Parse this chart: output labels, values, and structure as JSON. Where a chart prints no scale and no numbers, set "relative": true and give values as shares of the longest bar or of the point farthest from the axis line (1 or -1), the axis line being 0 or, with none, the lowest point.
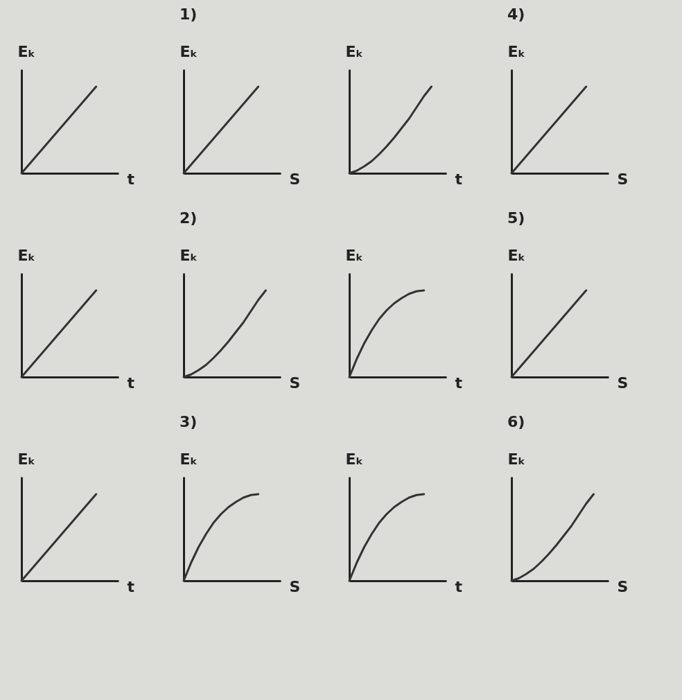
{
  "chart_data": [
    {
      "type": "line",
      "relative": true,
      "tick_labels": false,
      "ylabel": "Eₖ",
      "xlabel": "t",
      "categories": [
        null,
        null,
        null,
        null,
        null,
        null,
        null,
        null,
        null,
        null,
        null,
        null,
        null,
        null
      ],
      "series": [
        {
          "color": "#333333",
          "values": [
            0,
            0.1,
            0.2,
            0.3,
            0.4,
            0.5,
            0.6,
            0.7,
            0.8,
            0.9,
            1,
            null,
            null,
            null
          ]
        }
      ]
    },
    {
      "type": "line",
      "relative": true,
      "tick_labels": false,
      "title": "1)",
      "ylabel": "Eₖ",
      "xlabel": "S",
      "categories": [
        null,
        null,
        null,
        null,
        null,
        null,
        null,
        null,
        null,
        null,
        null,
        null,
        null,
        null
      ],
      "series": [
        {
          "color": "#333333",
          "values": [
            0,
            0.1,
            0.2,
            0.3,
            0.4,
            0.5,
            0.6,
            0.7,
            0.8,
            0.9,
            1,
            null,
            null,
            null
          ]
        }
      ]
    },
    {
      "type": "line",
      "relative": true,
      "tick_labels": false,
      "ylabel": "Eₖ",
      "xlabel": "t",
      "categories": [
        null,
        null,
        null,
        null,
        null,
        null,
        null,
        null,
        null,
        null,
        null,
        null,
        null,
        null
      ],
      "series": [
        {
          "color": "#333333",
          "values": [
            0,
            0.03,
            0.08,
            0.14,
            0.22,
            0.31,
            0.41,
            0.52,
            0.63,
            0.76,
            0.89,
            1,
            null,
            null
          ]
        }
      ]
    },
    {
      "type": "line",
      "relative": true,
      "tick_labels": false,
      "title": "4)",
      "ylabel": "Eₖ",
      "xlabel": "S",
      "categories": [
        null,
        null,
        null,
        null,
        null,
        null,
        null,
        null,
        null,
        null,
        null,
        null,
        null,
        null
      ],
      "series": [
        {
          "color": "#333333",
          "values": [
            0,
            0.1,
            0.2,
            0.3,
            0.4,
            0.5,
            0.6,
            0.7,
            0.8,
            0.9,
            1,
            null,
            null,
            null
          ]
        }
      ]
    },
    {
      "type": "line",
      "relative": true,
      "tick_labels": false,
      "ylabel": "Eₖ",
      "xlabel": "t",
      "categories": [
        null,
        null,
        null,
        null,
        null,
        null,
        null,
        null,
        null,
        null,
        null,
        null,
        null,
        null
      ],
      "series": [
        {
          "color": "#333333",
          "values": [
            0,
            0.1,
            0.2,
            0.3,
            0.4,
            0.5,
            0.6,
            0.7,
            0.8,
            0.9,
            1,
            null,
            null,
            null
          ]
        }
      ]
    },
    {
      "type": "line",
      "relative": true,
      "tick_labels": false,
      "title": "2)",
      "ylabel": "Eₖ",
      "xlabel": "S",
      "categories": [
        null,
        null,
        null,
        null,
        null,
        null,
        null,
        null,
        null,
        null,
        null,
        null,
        null,
        null
      ],
      "series": [
        {
          "color": "#333333",
          "values": [
            0,
            0.03,
            0.08,
            0.14,
            0.22,
            0.31,
            0.41,
            0.52,
            0.63,
            0.76,
            0.89,
            1,
            null,
            null
          ]
        }
      ]
    },
    {
      "type": "line",
      "relative": true,
      "tick_labels": false,
      "ylabel": "Eₖ",
      "xlabel": "t",
      "categories": [
        null,
        null,
        null,
        null,
        null,
        null,
        null,
        null,
        null,
        null,
        null,
        null,
        null,
        null
      ],
      "series": [
        {
          "color": "#333333",
          "values": [
            0,
            0.21,
            0.39,
            0.54,
            0.67,
            0.77,
            0.85,
            0.91,
            0.96,
            0.99,
            1,
            null,
            null,
            null
          ]
        }
      ]
    },
    {
      "type": "line",
      "relative": true,
      "tick_labels": false,
      "title": "5)",
      "ylabel": "Eₖ",
      "xlabel": "S",
      "categories": [
        null,
        null,
        null,
        null,
        null,
        null,
        null,
        null,
        null,
        null,
        null,
        null,
        null,
        null
      ],
      "series": [
        {
          "color": "#333333",
          "values": [
            0,
            0.1,
            0.2,
            0.3,
            0.4,
            0.5,
            0.6,
            0.7,
            0.8,
            0.9,
            1,
            null,
            null,
            null
          ]
        }
      ]
    },
    {
      "type": "line",
      "relative": true,
      "tick_labels": false,
      "ylabel": "Eₖ",
      "xlabel": "t",
      "categories": [
        null,
        null,
        null,
        null,
        null,
        null,
        null,
        null,
        null,
        null,
        null,
        null,
        null,
        null
      ],
      "series": [
        {
          "color": "#333333",
          "values": [
            0,
            0.1,
            0.2,
            0.3,
            0.4,
            0.5,
            0.6,
            0.7,
            0.8,
            0.9,
            1,
            null,
            null,
            null
          ]
        }
      ]
    },
    {
      "type": "line",
      "relative": true,
      "tick_labels": false,
      "title": "3)",
      "ylabel": "Eₖ",
      "xlabel": "S",
      "categories": [
        null,
        null,
        null,
        null,
        null,
        null,
        null,
        null,
        null,
        null,
        null,
        null,
        null,
        null
      ],
      "series": [
        {
          "color": "#333333",
          "values": [
            0,
            0.21,
            0.39,
            0.54,
            0.67,
            0.77,
            0.85,
            0.91,
            0.96,
            0.99,
            1,
            null,
            null,
            null
          ]
        }
      ]
    },
    {
      "type": "line",
      "relative": true,
      "tick_labels": false,
      "ylabel": "Eₖ",
      "xlabel": "t",
      "categories": [
        null,
        null,
        null,
        null,
        null,
        null,
        null,
        null,
        null,
        null,
        null,
        null,
        null,
        null
      ],
      "series": [
        {
          "color": "#333333",
          "values": [
            0,
            0.21,
            0.39,
            0.54,
            0.67,
            0.77,
            0.85,
            0.91,
            0.96,
            0.99,
            1,
            null,
            null,
            null
          ]
        }
      ]
    },
    {
      "type": "line",
      "relative": true,
      "tick_labels": false,
      "title": "6)",
      "ylabel": "Eₖ",
      "xlabel": "S",
      "categories": [
        null,
        null,
        null,
        null,
        null,
        null,
        null,
        null,
        null,
        null,
        null,
        null,
        null,
        null
      ],
      "series": [
        {
          "color": "#333333",
          "values": [
            0,
            0.03,
            0.08,
            0.14,
            0.22,
            0.31,
            0.41,
            0.52,
            0.63,
            0.76,
            0.89,
            1,
            null,
            null
          ]
        }
      ]
    }
  ]
}
